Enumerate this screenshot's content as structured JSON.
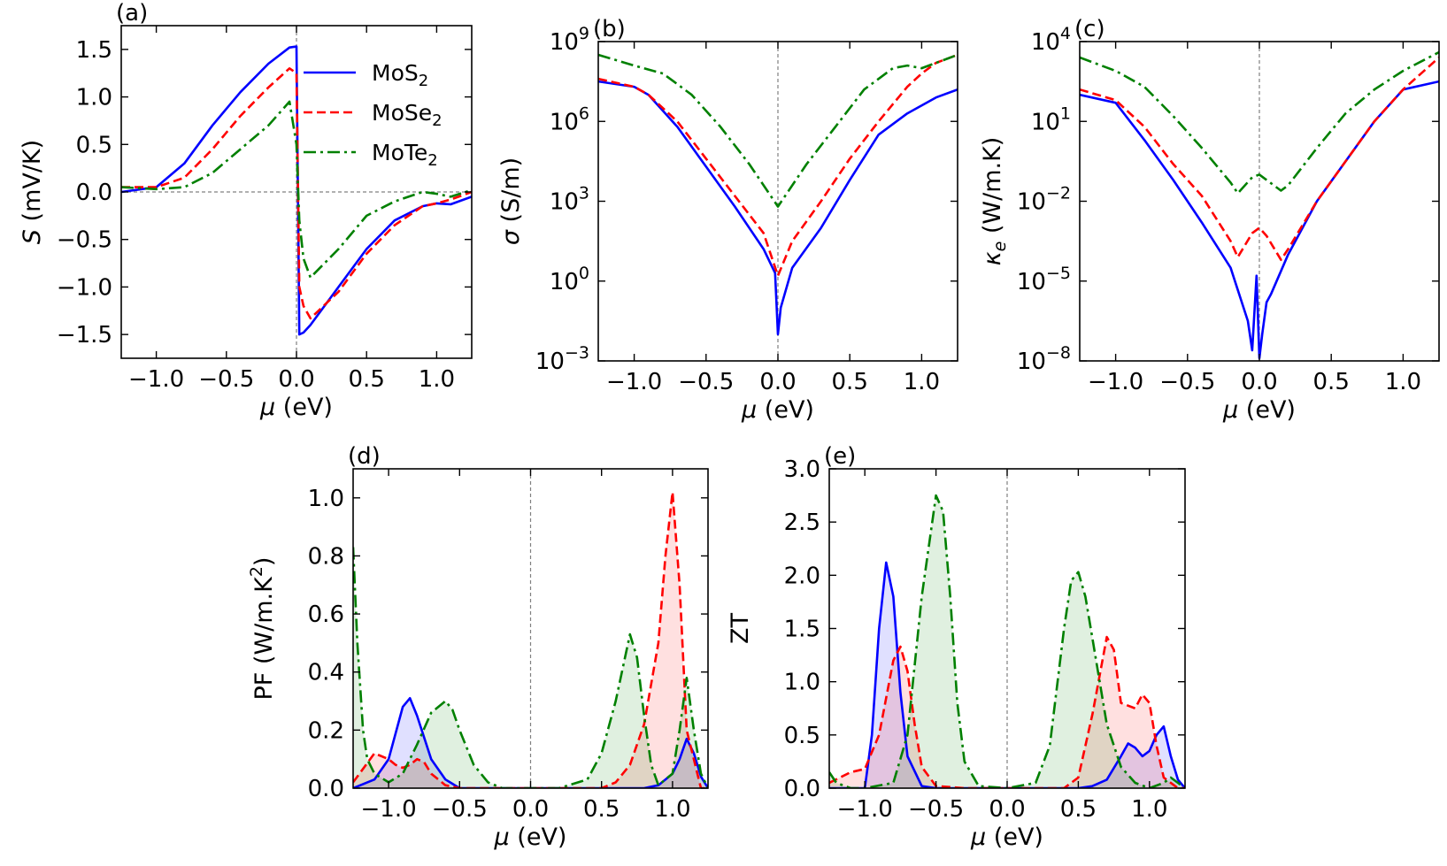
{
  "figure": {
    "colors": {
      "MoS2": "#0000ff",
      "MoSe2": "#ff0000",
      "MoTe2": "#008000",
      "zero_line": "#808080"
    },
    "legend": [
      {
        "key": "MoS2",
        "base": "MoS",
        "sub": "2",
        "style": "solid"
      },
      {
        "key": "MoSe2",
        "base": "MoSe",
        "sub": "2",
        "style": "dashed"
      },
      {
        "key": "MoTe2",
        "base": "MoTe",
        "sub": "2",
        "style": "dashdot"
      }
    ]
  },
  "chart_data": [
    {
      "id": "a",
      "panel_label": "(a)",
      "type": "line",
      "xlabel_sym": "μ",
      "xlabel_unit": " (eV)",
      "ylabel_sym": "S",
      "ylabel_unit": " (mV/K)",
      "xlim": [
        -1.25,
        1.25
      ],
      "ylim": [
        -1.75,
        1.75
      ],
      "yscale": "linear",
      "xticks": [
        -1.0,
        -0.5,
        0.0,
        0.5,
        1.0
      ],
      "xtick_labels": [
        "−1.0",
        "−0.5",
        "0.0",
        "0.5",
        "1.0"
      ],
      "yticks": [
        -1.5,
        -1.0,
        -0.5,
        0.0,
        0.5,
        1.0,
        1.5
      ],
      "ytick_labels": [
        "−1.5",
        "−1.0",
        "−0.5",
        "0.0",
        "0.5",
        "1.0",
        "1.5"
      ],
      "zero_lines": [
        "x",
        "y"
      ],
      "legend": true,
      "fill": false,
      "series": [
        {
          "key": "MoS2",
          "x": [
            -1.25,
            -1.0,
            -0.8,
            -0.6,
            -0.4,
            -0.2,
            -0.05,
            0.0,
            0.02,
            0.05,
            0.1,
            0.3,
            0.5,
            0.7,
            0.9,
            1.0,
            1.1,
            1.25
          ],
          "y": [
            0.0,
            0.05,
            0.3,
            0.7,
            1.05,
            1.35,
            1.52,
            1.53,
            -1.5,
            -1.48,
            -1.4,
            -1.0,
            -0.6,
            -0.3,
            -0.15,
            -0.12,
            -0.13,
            -0.05
          ]
        },
        {
          "key": "MoSe2",
          "x": [
            -1.25,
            -1.0,
            -0.8,
            -0.6,
            -0.4,
            -0.2,
            -0.05,
            0.0,
            0.02,
            0.05,
            0.1,
            0.3,
            0.5,
            0.7,
            0.9,
            1.0,
            1.1,
            1.25
          ],
          "y": [
            0.05,
            0.05,
            0.15,
            0.45,
            0.8,
            1.1,
            1.3,
            1.25,
            -1.0,
            -1.2,
            -1.33,
            -1.05,
            -0.65,
            -0.35,
            -0.15,
            -0.12,
            -0.08,
            0.0
          ]
        },
        {
          "key": "MoTe2",
          "x": [
            -1.25,
            -1.0,
            -0.8,
            -0.6,
            -0.4,
            -0.2,
            -0.05,
            0.0,
            0.02,
            0.05,
            0.1,
            0.3,
            0.5,
            0.7,
            0.9,
            1.0,
            1.1,
            1.25
          ],
          "y": [
            0.05,
            0.03,
            0.05,
            0.2,
            0.45,
            0.7,
            0.95,
            0.5,
            -0.3,
            -0.7,
            -0.9,
            -0.6,
            -0.25,
            -0.1,
            0.0,
            -0.02,
            -0.05,
            0.02
          ]
        }
      ]
    },
    {
      "id": "b",
      "panel_label": "(b)",
      "type": "line",
      "xlabel_sym": "μ",
      "xlabel_unit": " (eV)",
      "ylabel_sym": "σ",
      "ylabel_unit": " (S/m)",
      "xlim": [
        -1.25,
        1.25
      ],
      "ylim": [
        -3,
        9
      ],
      "yscale": "log",
      "xticks": [
        -1.0,
        -0.5,
        0.0,
        0.5,
        1.0
      ],
      "xtick_labels": [
        "−1.0",
        "−0.5",
        "0.0",
        "0.5",
        "1.0"
      ],
      "yticks": [
        -3,
        0,
        3,
        6,
        9
      ],
      "ytick_labels": [
        "10",
        "10",
        "10",
        "10",
        "10"
      ],
      "ytick_exps": [
        "−3",
        "0",
        "3",
        "6",
        "9"
      ],
      "zero_lines": [
        "x"
      ],
      "legend": false,
      "fill": false,
      "series": [
        {
          "key": "MoS2",
          "x": [
            -1.25,
            -1.0,
            -0.9,
            -0.7,
            -0.5,
            -0.3,
            -0.1,
            -0.02,
            0.0,
            0.02,
            0.1,
            0.3,
            0.5,
            0.7,
            0.9,
            1.0,
            1.1,
            1.25
          ],
          "y": [
            7.5,
            7.3,
            7.0,
            5.8,
            4.3,
            2.8,
            1.2,
            0.3,
            -2.0,
            -1.0,
            0.5,
            2.0,
            3.8,
            5.5,
            6.3,
            6.6,
            6.9,
            7.2
          ]
        },
        {
          "key": "MoSe2",
          "x": [
            -1.25,
            -1.0,
            -0.9,
            -0.7,
            -0.5,
            -0.3,
            -0.1,
            0.0,
            0.1,
            0.3,
            0.5,
            0.7,
            0.9,
            1.0,
            1.1,
            1.25
          ],
          "y": [
            7.6,
            7.3,
            7.0,
            6.0,
            4.6,
            3.2,
            1.8,
            0.2,
            1.5,
            3.0,
            4.6,
            6.0,
            7.3,
            7.8,
            8.2,
            8.5
          ]
        },
        {
          "key": "MoTe2",
          "x": [
            -1.25,
            -1.0,
            -0.8,
            -0.6,
            -0.4,
            -0.2,
            0.0,
            0.2,
            0.4,
            0.6,
            0.8,
            0.9,
            1.0,
            1.1,
            1.25
          ],
          "y": [
            8.5,
            8.1,
            7.8,
            7.0,
            5.8,
            4.4,
            2.8,
            4.4,
            5.8,
            7.2,
            8.0,
            8.1,
            8.0,
            8.2,
            8.5
          ]
        }
      ]
    },
    {
      "id": "c",
      "panel_label": "(c)",
      "type": "line",
      "xlabel_sym": "μ",
      "xlabel_unit": " (eV)",
      "ylabel_sym": "κ",
      "ylabel_sub": "e",
      "ylabel_unit": " (W/m.K)",
      "xlim": [
        -1.25,
        1.25
      ],
      "ylim": [
        -8,
        4
      ],
      "yscale": "log",
      "xticks": [
        -1.0,
        -0.5,
        0.0,
        0.5,
        1.0
      ],
      "xtick_labels": [
        "−1.0",
        "−0.5",
        "0.0",
        "0.5",
        "1.0"
      ],
      "yticks": [
        -8,
        -5,
        -2,
        1,
        4
      ],
      "ytick_labels": [
        "10",
        "10",
        "10",
        "10",
        "10"
      ],
      "ytick_exps": [
        "−8",
        "−5",
        "−2",
        "1",
        "4"
      ],
      "zero_lines": [
        "x"
      ],
      "legend": false,
      "fill": false,
      "series": [
        {
          "key": "MoS2",
          "x": [
            -1.25,
            -1.0,
            -0.8,
            -0.6,
            -0.4,
            -0.2,
            -0.08,
            -0.05,
            -0.02,
            0.0,
            0.02,
            0.05,
            0.08,
            0.2,
            0.4,
            0.6,
            0.8,
            1.0,
            1.25
          ],
          "y": [
            2.0,
            1.7,
            0.3,
            -1.2,
            -2.8,
            -4.5,
            -6.5,
            -7.6,
            -4.8,
            -7.9,
            -7.0,
            -5.8,
            -5.5,
            -4.0,
            -2.0,
            -0.5,
            1.0,
            2.2,
            2.5
          ]
        },
        {
          "key": "MoSe2",
          "x": [
            -1.25,
            -1.0,
            -0.8,
            -0.6,
            -0.4,
            -0.2,
            -0.15,
            -0.05,
            0.0,
            0.05,
            0.15,
            0.2,
            0.4,
            0.6,
            0.8,
            1.0,
            1.25
          ],
          "y": [
            2.2,
            1.8,
            0.8,
            -0.6,
            -1.8,
            -3.5,
            -4.1,
            -3.2,
            -3.0,
            -3.3,
            -4.2,
            -3.8,
            -2.0,
            -0.5,
            1.0,
            2.2,
            3.4
          ]
        },
        {
          "key": "MoTe2",
          "x": [
            -1.25,
            -1.0,
            -0.8,
            -0.6,
            -0.4,
            -0.2,
            -0.15,
            -0.05,
            0.0,
            0.05,
            0.15,
            0.2,
            0.4,
            0.6,
            0.8,
            1.0,
            1.25
          ],
          "y": [
            3.4,
            2.9,
            2.3,
            1.2,
            0.0,
            -1.3,
            -1.7,
            -1.1,
            -1.0,
            -1.2,
            -1.6,
            -1.4,
            0.0,
            1.3,
            2.2,
            2.9,
            3.6
          ]
        }
      ]
    },
    {
      "id": "d",
      "panel_label": "(d)",
      "type": "area",
      "xlabel_sym": "μ",
      "xlabel_unit": " (eV)",
      "ylabel_sym": "",
      "ylabel_unit": "PF (W/m.K",
      "ylabel_sup": "2",
      "ylabel_tail": ")",
      "xlim": [
        -1.25,
        1.25
      ],
      "ylim": [
        0,
        1.1
      ],
      "yscale": "linear",
      "xticks": [
        -1.0,
        -0.5,
        0.0,
        0.5,
        1.0
      ],
      "xtick_labels": [
        "−1.0",
        "−0.5",
        "0.0",
        "0.5",
        "1.0"
      ],
      "yticks": [
        0.0,
        0.2,
        0.4,
        0.6,
        0.8,
        1.0
      ],
      "ytick_labels": [
        "0.0",
        "0.2",
        "0.4",
        "0.6",
        "0.8",
        "1.0"
      ],
      "zero_lines": [
        "x"
      ],
      "legend": false,
      "fill": true,
      "series": [
        {
          "key": "MoS2",
          "x": [
            -1.25,
            -1.1,
            -1.0,
            -0.9,
            -0.85,
            -0.8,
            -0.7,
            -0.6,
            -0.5,
            -0.3,
            0.0,
            0.5,
            0.8,
            0.9,
            0.95,
            1.0,
            1.05,
            1.1,
            1.15,
            1.2,
            1.25
          ],
          "y": [
            0.0,
            0.03,
            0.1,
            0.28,
            0.31,
            0.25,
            0.1,
            0.03,
            0.0,
            0.0,
            0.0,
            0.0,
            0.0,
            0.01,
            0.03,
            0.05,
            0.1,
            0.17,
            0.12,
            0.04,
            0.0
          ]
        },
        {
          "key": "MoSe2",
          "x": [
            -1.25,
            -1.1,
            -1.0,
            -0.95,
            -0.9,
            -0.85,
            -0.8,
            -0.75,
            -0.7,
            -0.6,
            -0.5,
            -0.3,
            0.0,
            0.3,
            0.5,
            0.6,
            0.7,
            0.8,
            0.9,
            0.95,
            1.0,
            1.05,
            1.1,
            1.2,
            1.25
          ],
          "y": [
            0.02,
            0.12,
            0.1,
            0.08,
            0.07,
            0.08,
            0.1,
            0.09,
            0.05,
            0.01,
            0.0,
            0.0,
            0.0,
            0.0,
            0.0,
            0.02,
            0.08,
            0.22,
            0.5,
            0.8,
            1.02,
            0.7,
            0.2,
            0.0,
            0.0
          ]
        },
        {
          "key": "MoTe2",
          "x": [
            -1.25,
            -1.22,
            -1.18,
            -1.15,
            -1.1,
            -1.0,
            -0.9,
            -0.8,
            -0.7,
            -0.6,
            -0.55,
            -0.5,
            -0.4,
            -0.3,
            -0.2,
            0.0,
            0.2,
            0.4,
            0.5,
            0.6,
            0.7,
            0.75,
            0.8,
            0.85,
            0.9,
            1.0,
            1.05,
            1.1,
            1.15,
            1.2,
            1.25
          ],
          "y": [
            0.83,
            0.5,
            0.2,
            0.1,
            0.05,
            0.02,
            0.05,
            0.15,
            0.26,
            0.3,
            0.27,
            0.2,
            0.08,
            0.02,
            0.0,
            0.0,
            0.0,
            0.03,
            0.12,
            0.3,
            0.53,
            0.45,
            0.25,
            0.08,
            0.01,
            0.05,
            0.2,
            0.38,
            0.2,
            0.05,
            0.0
          ]
        }
      ]
    },
    {
      "id": "e",
      "panel_label": "(e)",
      "type": "area",
      "xlabel_sym": "μ",
      "xlabel_unit": " (eV)",
      "ylabel_sym": "",
      "ylabel_unit": "ZT",
      "xlim": [
        -1.25,
        1.25
      ],
      "ylim": [
        0,
        3.0
      ],
      "yscale": "linear",
      "xticks": [
        -1.0,
        -0.5,
        0.0,
        0.5,
        1.0
      ],
      "xtick_labels": [
        "−1.0",
        "−0.5",
        "0.0",
        "0.5",
        "1.0"
      ],
      "yticks": [
        0.0,
        0.5,
        1.0,
        1.5,
        2.0,
        2.5,
        3.0
      ],
      "ytick_labels": [
        "0.0",
        "0.5",
        "1.0",
        "1.5",
        "2.0",
        "2.5",
        "3.0"
      ],
      "zero_lines": [
        "x"
      ],
      "legend": false,
      "fill": true,
      "series": [
        {
          "key": "MoS2",
          "x": [
            -1.25,
            -1.0,
            -0.95,
            -0.9,
            -0.85,
            -0.8,
            -0.75,
            -0.7,
            -0.6,
            -0.5,
            0.0,
            0.5,
            0.6,
            0.7,
            0.8,
            0.85,
            0.9,
            0.95,
            1.0,
            1.05,
            1.1,
            1.15,
            1.2,
            1.25
          ],
          "y": [
            0.0,
            0.0,
            0.5,
            1.5,
            2.12,
            1.8,
            0.9,
            0.3,
            0.02,
            0.0,
            0.0,
            0.0,
            0.02,
            0.08,
            0.3,
            0.42,
            0.38,
            0.3,
            0.35,
            0.5,
            0.58,
            0.3,
            0.08,
            0.0
          ]
        },
        {
          "key": "MoSe2",
          "x": [
            -1.25,
            -1.1,
            -1.0,
            -0.9,
            -0.8,
            -0.75,
            -0.7,
            -0.65,
            -0.6,
            -0.5,
            -0.3,
            0.0,
            0.4,
            0.5,
            0.6,
            0.7,
            0.75,
            0.8,
            0.9,
            0.95,
            1.0,
            1.05,
            1.1,
            1.2,
            1.25
          ],
          "y": [
            0.05,
            0.15,
            0.18,
            0.5,
            1.2,
            1.33,
            1.1,
            0.6,
            0.2,
            0.02,
            0.0,
            0.0,
            0.0,
            0.1,
            0.7,
            1.42,
            1.3,
            0.8,
            0.75,
            0.88,
            0.8,
            0.4,
            0.1,
            0.0,
            0.0
          ]
        },
        {
          "key": "MoTe2",
          "x": [
            -1.25,
            -1.2,
            -1.1,
            -1.0,
            -0.8,
            -0.7,
            -0.6,
            -0.5,
            -0.45,
            -0.4,
            -0.35,
            -0.3,
            -0.2,
            0.0,
            0.2,
            0.3,
            0.4,
            0.45,
            0.5,
            0.55,
            0.6,
            0.7,
            0.8,
            0.9,
            1.0,
            1.1,
            1.15,
            1.2,
            1.25
          ],
          "y": [
            0.15,
            0.05,
            0.0,
            0.0,
            0.05,
            0.5,
            1.8,
            2.75,
            2.6,
            1.8,
            0.8,
            0.25,
            0.02,
            0.0,
            0.05,
            0.4,
            1.5,
            1.95,
            2.03,
            1.8,
            1.4,
            0.6,
            0.2,
            0.05,
            0.0,
            0.05,
            0.1,
            0.05,
            0.0
          ]
        }
      ]
    }
  ]
}
